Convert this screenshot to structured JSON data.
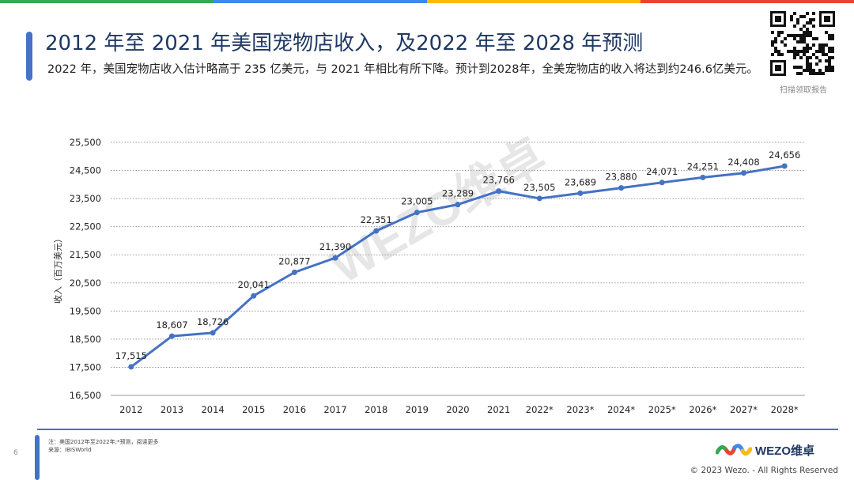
{
  "header": {
    "title": "2012 年至 2021 年美国宠物店收入，及2022 年至 2028 年预测",
    "subtitle": "2022 年，美国宠物店收入估计略高于 235 亿美元，与 2021 年相比有所下降。预计到2028年，全美宠物店的收入将达到约246.6亿美元。",
    "qr_caption": "扫描领取报告"
  },
  "colors": {
    "accent": "#4472C4",
    "title": "#1F3864",
    "line": "#4472C4",
    "topbar": [
      "#34A853",
      "#4285F4",
      "#FBBC05",
      "#EA4335"
    ]
  },
  "chart_data": {
    "type": "line",
    "categories": [
      "2012",
      "2013",
      "2014",
      "2015",
      "2016",
      "2017",
      "2018",
      "2019",
      "2020",
      "2021",
      "2022*",
      "2023*",
      "2024*",
      "2025*",
      "2026*",
      "2027*",
      "2028*"
    ],
    "values": [
      17515,
      18607,
      18726,
      20041,
      20877,
      21390,
      22351,
      23005,
      23289,
      23766,
      23505,
      23689,
      23880,
      24071,
      24251,
      24408,
      24656
    ],
    "value_labels": [
      "17,515",
      "18,607",
      "18,726",
      "20,041",
      "20,877",
      "21,390",
      "22,351",
      "23,005",
      "23,289",
      "23,766",
      "23,505",
      "23,689",
      "23,880",
      "24,071",
      "24,251",
      "24,408",
      "24,656"
    ],
    "yticks": [
      "16,500",
      "17,500",
      "18,500",
      "19,500",
      "20,500",
      "21,500",
      "22,500",
      "23,500",
      "24,500",
      "25,500"
    ],
    "ytick_values": [
      16500,
      17500,
      18500,
      19500,
      20500,
      21500,
      22500,
      23500,
      24500,
      25500
    ],
    "ylim": [
      16500,
      25500
    ],
    "ylabel": "收入（百万美元）",
    "xlabel": "",
    "grid": "horizontal-dotted"
  },
  "watermark": "WEZO维卓",
  "footer": {
    "page_number": "6",
    "note_line1": "注：美国2012年至2022年;*预测，阅读更多",
    "note_line2": "来源：IBISWorld",
    "logo_text": "WEZO维卓",
    "copyright": "© 2023 Wezo. - All Rights Reserved"
  }
}
